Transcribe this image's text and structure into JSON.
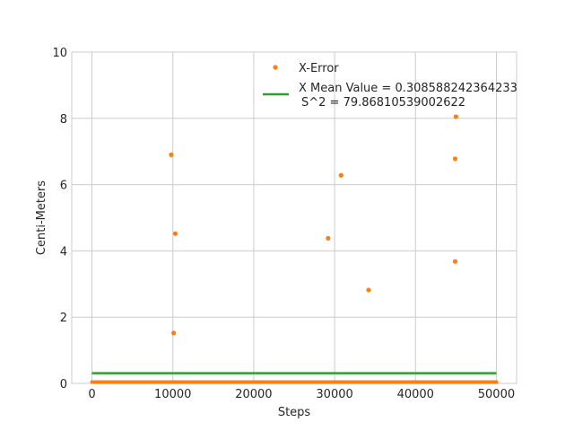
{
  "chart_data": {
    "type": "scatter",
    "xlabel": "Steps",
    "ylabel": "Centi-Meters",
    "xlim": [
      -2500,
      52500
    ],
    "ylim": [
      0,
      10
    ],
    "xticks": [
      0,
      10000,
      20000,
      30000,
      40000,
      50000
    ],
    "yticks": [
      0,
      2,
      4,
      6,
      8,
      10
    ],
    "grid": true,
    "legend_position": "top-right",
    "series": [
      {
        "name": "X-Error",
        "kind": "scatter",
        "color": "#ff7f0e",
        "points": [
          [
            9800,
            6.9
          ],
          [
            10300,
            4.52
          ],
          [
            10100,
            1.52
          ],
          [
            29200,
            4.38
          ],
          [
            30800,
            6.28
          ],
          [
            34200,
            2.82
          ],
          [
            45000,
            8.05
          ],
          [
            44900,
            6.78
          ],
          [
            44900,
            3.68
          ]
        ],
        "baseline_cluster": {
          "x_range": [
            0,
            50000
          ],
          "y": 0.04
        }
      },
      {
        "name": "X Mean Value = 0.308588242364233",
        "name_line2": "S^2 = 79.86810539002622",
        "kind": "line",
        "color": "#2ca02c",
        "x": [
          0,
          50000
        ],
        "y": 0.308588242364233
      }
    ]
  }
}
